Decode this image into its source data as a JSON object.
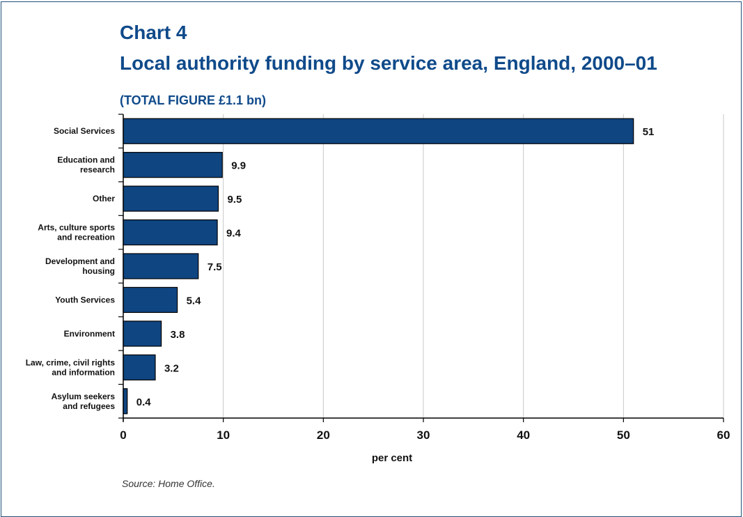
{
  "header": {
    "chart_number": "Chart 4",
    "title": "Local authority funding by service area, England, 2000–01",
    "subtitle": "(TOTAL FIGURE £1.1 bn)"
  },
  "source": "Source: Home Office.",
  "colors": {
    "bar": "#0f4581",
    "bar_outline": "#000000",
    "title": "#0f4a8a",
    "grid": "#c8c8c8"
  },
  "chart_data": {
    "type": "bar",
    "orientation": "horizontal",
    "categories": [
      [
        "Social Services"
      ],
      [
        "Education and",
        "research"
      ],
      [
        "Other"
      ],
      [
        "Arts, culture sports",
        "and recreation"
      ],
      [
        "Development and",
        "housing"
      ],
      [
        "Youth Services"
      ],
      [
        "Environment"
      ],
      [
        "Law, crime, civil rights",
        "and information"
      ],
      [
        "Asylum seekers",
        "and refugees"
      ]
    ],
    "values": [
      51,
      9.9,
      9.5,
      9.4,
      7.5,
      5.4,
      3.8,
      3.2,
      0.4
    ],
    "value_labels": [
      "51",
      "9.9",
      "9.5",
      "9.4",
      "7.5",
      "5.4",
      "3.8",
      "3.2",
      "0.4"
    ],
    "xlim": [
      0,
      60
    ],
    "xticks": [
      0,
      10,
      20,
      30,
      40,
      50,
      60
    ],
    "xlabel": "per cent",
    "ylabel": "",
    "grid": true
  }
}
